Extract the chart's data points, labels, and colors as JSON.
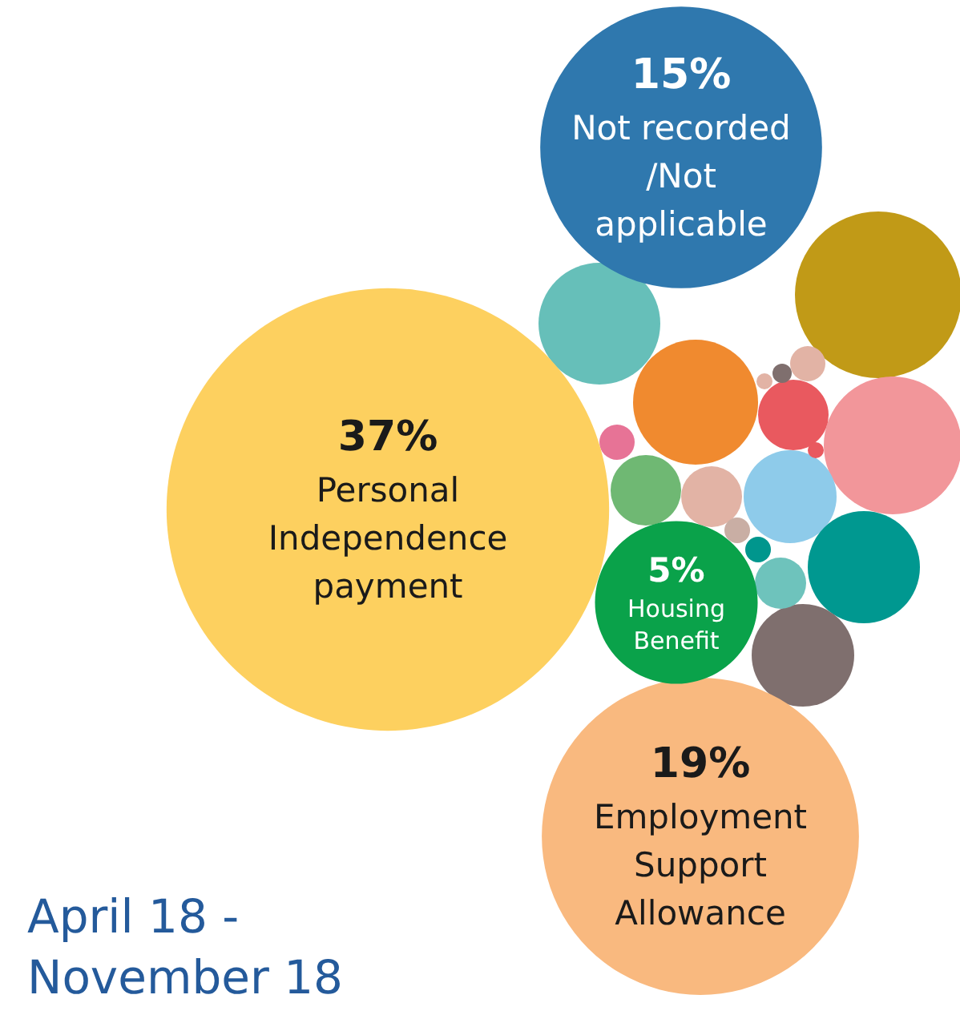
{
  "chart_data": {
    "type": "other",
    "title": "April 18 - November 18",
    "categories": [
      "Personal Independence payment",
      "Employment Support Allowance",
      "Not recorded /Not applicable",
      "Housing Benefit"
    ],
    "values": [
      37,
      19,
      15,
      5
    ],
    "value_labels": [
      "37%",
      "19%",
      "15%",
      "5%"
    ],
    "colors": [
      "#fdd05f",
      "#f9b97f",
      "#2f78ae",
      "#0aa24a"
    ]
  }
}
